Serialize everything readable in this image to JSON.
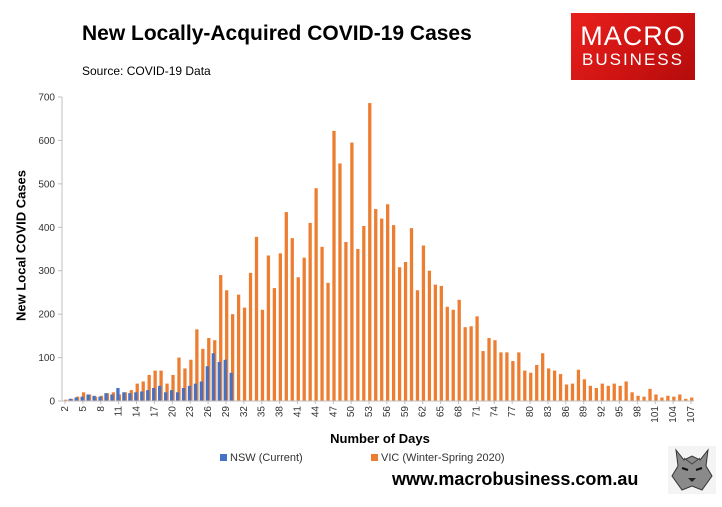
{
  "header": {
    "title": "New Locally-Acquired COVID-19 Cases",
    "source": "Source: COVID-19 Data"
  },
  "logo": {
    "line1": "MACRO",
    "line2": "BUSINESS",
    "color": "#d8181a"
  },
  "footer": {
    "url": "www.macrobusiness.com.au"
  },
  "chart_data": {
    "type": "bar",
    "xlabel": "Number of Days",
    "ylabel": "New Local COVID Cases",
    "ylim": [
      0,
      700
    ],
    "yticks": [
      0,
      100,
      200,
      300,
      400,
      500,
      600,
      700
    ],
    "x_start": 2,
    "x_end": 107,
    "xtick_labels": [
      "2",
      "5",
      "8",
      "11",
      "14",
      "17",
      "20",
      "23",
      "26",
      "29",
      "32",
      "35",
      "38",
      "41",
      "44",
      "47",
      "50",
      "53",
      "56",
      "59",
      "62",
      "65",
      "68",
      "71",
      "74",
      "77",
      "80",
      "83",
      "86",
      "89",
      "92",
      "95",
      "98",
      "101",
      "104",
      "107"
    ],
    "legend_position": "bottom",
    "grid": false,
    "series": [
      {
        "name": "NSW (Current)",
        "color": "#4472c4",
        "values": [
          0,
          5,
          8,
          10,
          15,
          12,
          10,
          18,
          15,
          30,
          20,
          18,
          20,
          22,
          25,
          30,
          35,
          20,
          25,
          20,
          30,
          35,
          40,
          45,
          80,
          110,
          90,
          95,
          65
        ]
      },
      {
        "name": "VIC (Winter-Spring 2020)",
        "color": "#ed7d31",
        "values": [
          3,
          5,
          10,
          20,
          15,
          10,
          12,
          18,
          20,
          15,
          20,
          25,
          40,
          45,
          60,
          70,
          70,
          40,
          60,
          100,
          75,
          95,
          165,
          120,
          145,
          140,
          290,
          255,
          200,
          245,
          215,
          295,
          378,
          210,
          335,
          260,
          340,
          435,
          375,
          285,
          330,
          410,
          490,
          355,
          272,
          622,
          547,
          366,
          595,
          350,
          403,
          686,
          442,
          420,
          453,
          405,
          308,
          320,
          398,
          255,
          358,
          300,
          268,
          265,
          217,
          210,
          233,
          170,
          172,
          195,
          115,
          145,
          140,
          112,
          112,
          92,
          112,
          70,
          65,
          83,
          110,
          75,
          70,
          62,
          38,
          40,
          72,
          50,
          35,
          30,
          40,
          35,
          40,
          35,
          45,
          20,
          12,
          10,
          28,
          15,
          8,
          12,
          10,
          15,
          5,
          8
        ]
      }
    ]
  }
}
